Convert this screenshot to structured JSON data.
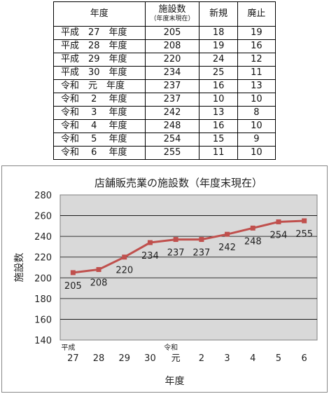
{
  "table": {
    "headers": {
      "year": "年度",
      "facilities": "施設数",
      "facilities_sub": "（年度末現在）",
      "new": "新規",
      "abolished": "廃止"
    },
    "rows": [
      {
        "year": "平成　27　年度",
        "facilities": "205",
        "new": "18",
        "abolished": "19"
      },
      {
        "year": "平成　28　年度",
        "facilities": "208",
        "new": "19",
        "abolished": "16"
      },
      {
        "year": "平成　29　年度",
        "facilities": "220",
        "new": "24",
        "abolished": "12"
      },
      {
        "year": "平成　30　年度",
        "facilities": "234",
        "new": "25",
        "abolished": "11"
      },
      {
        "year": "令和　元　年度",
        "facilities": "237",
        "new": "16",
        "abolished": "13"
      },
      {
        "year": "令和　 2 　年度",
        "facilities": "237",
        "new": "10",
        "abolished": "10"
      },
      {
        "year": "令和　 3 　年度",
        "facilities": "242",
        "new": "13",
        "abolished": "8"
      },
      {
        "year": "令和　 4 　年度",
        "facilities": "248",
        "new": "16",
        "abolished": "10"
      },
      {
        "year": "令和　 5 　年度",
        "facilities": "254",
        "new": "15",
        "abolished": "9"
      },
      {
        "year": "令和　 6 　年度",
        "facilities": "255",
        "new": "11",
        "abolished": "10"
      }
    ]
  },
  "chart_data": {
    "type": "line",
    "title": "店舗販売業の施設数（年度末現在）",
    "xlabel": "年度",
    "ylabel": "施設数",
    "era_labels": [
      {
        "text": "平成",
        "category_index": 0
      },
      {
        "text": "令和",
        "category_index": 4
      }
    ],
    "categories": [
      "27",
      "28",
      "29",
      "30",
      "元",
      "2",
      "3",
      "4",
      "5",
      "6"
    ],
    "series": [
      {
        "values": [
          205,
          208,
          220,
          234,
          237,
          237,
          242,
          248,
          254,
          255
        ],
        "color": "#c0504d"
      }
    ],
    "ylim": [
      140,
      280
    ],
    "yticks": [
      140,
      160,
      180,
      200,
      220,
      240,
      260,
      280
    ],
    "grid": true,
    "legend": "none",
    "plot_background": "#d9d9d9"
  }
}
